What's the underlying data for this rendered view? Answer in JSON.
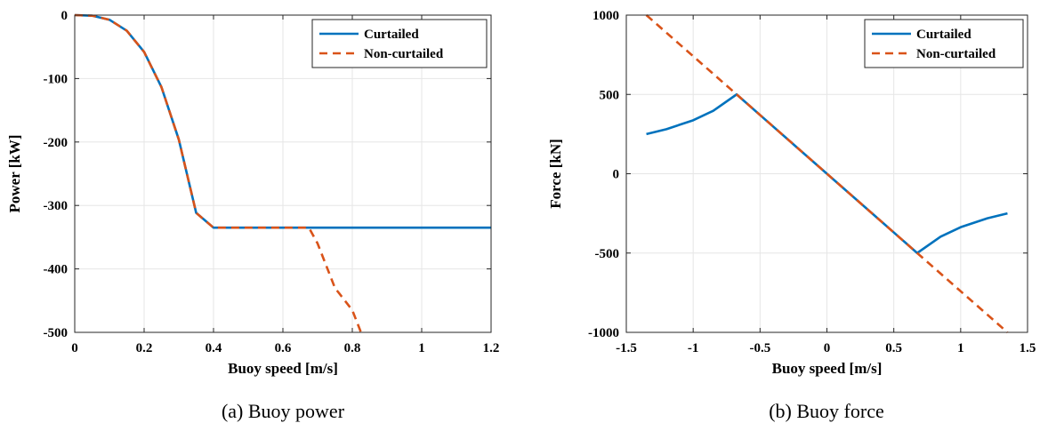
{
  "chart_data": [
    {
      "type": "line",
      "caption": "(a) Buoy power",
      "xlabel": "Buoy speed [m/s]",
      "ylabel": "Power [kW]",
      "xlim": [
        0,
        1.2
      ],
      "ylim": [
        -500,
        0
      ],
      "xticks": [
        0,
        0.2,
        0.4,
        0.6,
        0.8,
        1,
        1.2
      ],
      "xtick_labels": [
        "0",
        "0.2",
        "0.4",
        "0.6",
        "0.8",
        "1",
        "1.2"
      ],
      "yticks": [
        -500,
        -400,
        -300,
        -200,
        -100,
        0
      ],
      "ytick_labels": [
        "-500",
        "-400",
        "-300",
        "-200",
        "-100",
        "0"
      ],
      "grid": true,
      "legend": "top-right",
      "series": [
        {
          "name": "Curtailed",
          "color": "#0072BD",
          "style": "solid",
          "x": [
            0,
            0.05,
            0.1,
            0.15,
            0.2,
            0.25,
            0.3,
            0.35,
            0.4,
            0.45,
            0.5,
            0.55,
            0.6,
            0.65,
            0.675,
            0.8,
            1.0,
            1.2
          ],
          "y": [
            0,
            -0.9,
            -7.3,
            -24.6,
            -58.1,
            -113.6,
            -196.2,
            -311.7,
            -335.0,
            -335.0,
            -335.0,
            -335.0,
            -335.0,
            -335.0,
            -335.0,
            -335.0,
            -335.0,
            -335.0
          ]
        },
        {
          "name": "Non-curtailed",
          "color": "#D95319",
          "style": "dashed",
          "x": [
            0,
            0.05,
            0.1,
            0.15,
            0.2,
            0.25,
            0.3,
            0.35,
            0.4,
            0.45,
            0.5,
            0.55,
            0.6,
            0.65,
            0.675,
            0.7,
            0.75,
            0.8,
            0.825
          ],
          "y": [
            0,
            -0.9,
            -7.3,
            -24.6,
            -58.1,
            -113.6,
            -196.2,
            -311.7,
            -335.0,
            -335.0,
            -335.0,
            -335.0,
            -335.0,
            -335.0,
            -335.0,
            -360.0,
            -430.0,
            -465.0,
            -500.0
          ]
        }
      ]
    },
    {
      "type": "line",
      "caption": "(b) Buoy force",
      "xlabel": "Buoy speed [m/s]",
      "ylabel": "Force [kN]",
      "xlim": [
        -1.5,
        1.5
      ],
      "ylim": [
        -1000,
        1000
      ],
      "xticks": [
        -1.5,
        -1,
        -0.5,
        0,
        0.5,
        1,
        1.5
      ],
      "xtick_labels": [
        "-1.5",
        "-1",
        "-0.5",
        "0",
        "0.5",
        "1",
        "1.5"
      ],
      "yticks": [
        -1000,
        -500,
        0,
        500,
        1000
      ],
      "ytick_labels": [
        "-1000",
        "-500",
        "0",
        "500",
        "1000"
      ],
      "grid": true,
      "legend": "top-right",
      "series": [
        {
          "name": "Curtailed",
          "color": "#0072BD",
          "style": "solid",
          "x": [
            -1.35,
            -1.2,
            -1.0,
            -0.85,
            -0.675,
            -0.5,
            -0.25,
            -0.05,
            0.05,
            0.25,
            0.5,
            0.675,
            0.85,
            1.0,
            1.2,
            1.35
          ],
          "y": [
            250,
            281,
            337,
            397,
            500,
            370,
            185,
            37,
            -37,
            -185,
            -370,
            -500,
            -397,
            -337,
            -281,
            -250
          ]
        },
        {
          "name": "Non-curtailed",
          "color": "#D95319",
          "style": "dashed",
          "x": [
            -1.35,
            -0.05,
            0.05,
            1.35
          ],
          "y": [
            1000,
            37,
            -37,
            -1000
          ]
        }
      ]
    }
  ]
}
